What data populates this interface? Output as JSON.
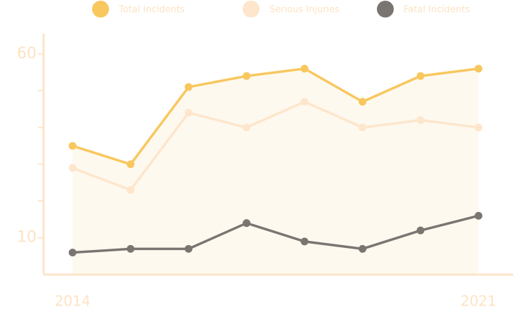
{
  "chart_data": {
    "type": "line",
    "x": [
      2014,
      2015,
      2016,
      2017,
      2018,
      2019,
      2020,
      2021
    ],
    "series": [
      {
        "name": "Total Incidents",
        "color": "#f8c75e",
        "values": [
          35,
          30,
          51,
          54,
          56,
          47,
          54,
          56
        ],
        "area": true
      },
      {
        "name": "Serious Injuries",
        "color": "#fde6cc",
        "values": [
          29,
          23,
          44,
          40,
          47,
          40,
          42,
          40
        ]
      },
      {
        "name": "Fatal Incidents",
        "color": "#7b7572",
        "values": [
          6,
          7,
          7,
          14,
          9,
          7,
          12,
          16
        ]
      }
    ],
    "xlim": [
      2013.5,
      2021.6
    ],
    "xticks": [
      2014,
      2021
    ],
    "ylim": [
      0,
      65.5
    ],
    "yticks": [
      10,
      60
    ],
    "minor_yticks": [
      20,
      30,
      40,
      50
    ],
    "grid": false,
    "legend": "top"
  }
}
